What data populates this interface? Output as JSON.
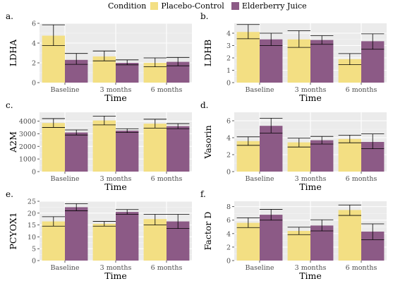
{
  "legend": {
    "title": "Condition",
    "entries": [
      {
        "label": "Placebo-Control",
        "color": "#F3DF83"
      },
      {
        "label": "Elderberry Juice",
        "color": "#8C5A86"
      }
    ]
  },
  "chart_data": [
    {
      "type": "bar",
      "panel_letter": "a.",
      "xlabel": "Time",
      "ylabel": "LDHA",
      "categories": [
        "Baseline",
        "3 months",
        "6 months"
      ],
      "ylim": [
        0,
        6
      ],
      "yticks": [
        0,
        2,
        4,
        6
      ],
      "series": [
        {
          "name": "Placebo-Control",
          "values": [
            4.75,
            2.65,
            2.0
          ],
          "err_low": [
            3.75,
            2.2,
            1.6
          ],
          "err_high": [
            5.85,
            3.2,
            2.5
          ]
        },
        {
          "name": "Elderberry Juice",
          "values": [
            2.3,
            2.0,
            2.1
          ],
          "err_low": [
            1.85,
            1.8,
            1.7
          ],
          "err_high": [
            2.95,
            2.3,
            2.55
          ]
        }
      ]
    },
    {
      "type": "bar",
      "panel_letter": "b.",
      "xlabel": "Time",
      "ylabel": "LDHB",
      "categories": [
        "Baseline",
        "3 months",
        "6 months"
      ],
      "ylim": [
        0,
        4.8
      ],
      "yticks": [
        0,
        1,
        2,
        3,
        4
      ],
      "series": [
        {
          "name": "Placebo-Control",
          "values": [
            4.1,
            3.5,
            1.9
          ],
          "err_low": [
            3.55,
            2.85,
            1.45
          ],
          "err_high": [
            4.7,
            4.2,
            2.35
          ]
        },
        {
          "name": "Elderberry Juice",
          "values": [
            3.5,
            3.45,
            3.35
          ],
          "err_low": [
            3.0,
            3.1,
            2.7
          ],
          "err_high": [
            4.0,
            3.8,
            3.95
          ]
        }
      ]
    },
    {
      "type": "bar",
      "panel_letter": "c.",
      "xlabel": "Time",
      "ylabel": "A2M",
      "categories": [
        "Baseline",
        "3 months",
        "6 months"
      ],
      "ylim": [
        0,
        4700
      ],
      "yticks": [
        0,
        1000,
        2000,
        3000,
        4000
      ],
      "series": [
        {
          "name": "Placebo-Control",
          "values": [
            3850,
            4050,
            3800
          ],
          "err_low": [
            3500,
            3700,
            3450
          ],
          "err_high": [
            4200,
            4400,
            4150
          ]
        },
        {
          "name": "Elderberry Juice",
          "values": [
            3100,
            3250,
            3600
          ],
          "err_low": [
            2900,
            3100,
            3400
          ],
          "err_high": [
            3300,
            3400,
            3800
          ]
        }
      ]
    },
    {
      "type": "bar",
      "panel_letter": "d.",
      "xlabel": "Time",
      "ylabel": "Vasorin",
      "categories": [
        "Baseline",
        "3 months",
        "6 months"
      ],
      "ylim": [
        0,
        7.0
      ],
      "yticks": [
        0,
        2,
        4,
        6
      ],
      "series": [
        {
          "name": "Placebo-Control",
          "values": [
            3.6,
            3.45,
            3.85
          ],
          "err_low": [
            3.1,
            2.9,
            3.4
          ],
          "err_high": [
            4.1,
            3.95,
            4.3
          ]
        },
        {
          "name": "Elderberry Juice",
          "values": [
            5.4,
            3.7,
            3.5
          ],
          "err_low": [
            4.55,
            3.25,
            2.7
          ],
          "err_high": [
            6.3,
            4.15,
            4.45
          ]
        }
      ]
    },
    {
      "type": "bar",
      "panel_letter": "e.",
      "xlabel": "Time",
      "ylabel": "PCYOX1",
      "categories": [
        "Baseline",
        "3 months",
        "6 months"
      ],
      "ylim": [
        0,
        25
      ],
      "yticks": [
        0,
        5,
        10,
        15,
        20,
        25
      ],
      "series": [
        {
          "name": "Placebo-Control",
          "values": [
            16.5,
            15.5,
            17.5
          ],
          "err_low": [
            14.5,
            14.5,
            15.0
          ],
          "err_high": [
            18.5,
            16.5,
            19.5
          ]
        },
        {
          "name": "Elderberry Juice",
          "values": [
            22.5,
            20.5,
            16.5
          ],
          "err_low": [
            21.0,
            19.5,
            13.5
          ],
          "err_high": [
            24.0,
            21.5,
            19.5
          ]
        }
      ]
    },
    {
      "type": "bar",
      "panel_letter": "f.",
      "xlabel": "Time",
      "ylabel": "Factor D",
      "categories": [
        "Baseline",
        "3 months",
        "6 months"
      ],
      "ylim": [
        0,
        8.8
      ],
      "yticks": [
        0,
        2,
        4,
        6,
        8
      ],
      "series": [
        {
          "name": "Placebo-Control",
          "values": [
            5.6,
            4.4,
            7.5
          ],
          "err_low": [
            4.9,
            3.85,
            6.7
          ],
          "err_high": [
            6.35,
            4.95,
            8.25
          ]
        },
        {
          "name": "Elderberry Juice",
          "values": [
            6.8,
            5.2,
            4.3
          ],
          "err_low": [
            6.0,
            4.4,
            3.1
          ],
          "err_high": [
            7.6,
            6.05,
            5.45
          ]
        }
      ]
    }
  ]
}
